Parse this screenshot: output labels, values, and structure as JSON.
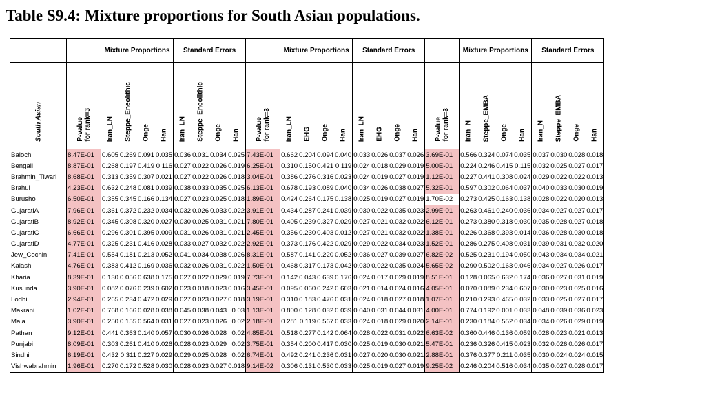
{
  "title": "Table S9.4: Mixture proportions for South Asian populations.",
  "group_labels": {
    "mixture": "Mixture Proportions",
    "stderr": "Standard Errors"
  },
  "row_header": "South Asian",
  "pvalue_header": "P-value\nfor rank=3",
  "blocks": [
    {
      "sources": [
        "Iran_LN",
        "Steppe_Eneolithic",
        "Onge",
        "Han"
      ]
    },
    {
      "sources": [
        "Iran_LN",
        "EHG",
        "Onge",
        "Han"
      ]
    },
    {
      "sources": [
        "Iran_N",
        "Steppe_EMBA",
        "Onge",
        "Han"
      ]
    }
  ],
  "colors": {
    "highlight": "#f4c2c3"
  },
  "rows": [
    {
      "name": "Balochi",
      "b": [
        [
          "8.47E-01",
          true,
          [
            "0.605",
            "0.269",
            "0.091",
            "0.035"
          ],
          [
            "0.036",
            "0.031",
            "0.034",
            "0.025"
          ]
        ],
        [
          "7.43E-01",
          true,
          [
            "0.662",
            "0.204",
            "0.094",
            "0.040"
          ],
          [
            "0.033",
            "0.026",
            "0.037",
            "0.026"
          ]
        ],
        [
          "3.69E-01",
          true,
          [
            "0.566",
            "0.324",
            "0.074",
            "0.035"
          ],
          [
            "0.037",
            "0.030",
            "0.028",
            "0.018"
          ]
        ]
      ]
    },
    {
      "name": "Bengali",
      "b": [
        [
          "8.87E-01",
          true,
          [
            "0.268",
            "0.197",
            "0.419",
            "0.116"
          ],
          [
            "0.027",
            "0.022",
            "0.026",
            "0.019"
          ]
        ],
        [
          "6.25E-01",
          true,
          [
            "0.310",
            "0.150",
            "0.421",
            "0.119"
          ],
          [
            "0.024",
            "0.018",
            "0.029",
            "0.019"
          ]
        ],
        [
          "5.00E-01",
          true,
          [
            "0.224",
            "0.246",
            "0.415",
            "0.115"
          ],
          [
            "0.032",
            "0.025",
            "0.027",
            "0.017"
          ]
        ]
      ]
    },
    {
      "name": "Brahmin_Tiwari",
      "b": [
        [
          "8.68E-01",
          true,
          [
            "0.313",
            "0.359",
            "0.307",
            "0.021"
          ],
          [
            "0.027",
            "0.022",
            "0.026",
            "0.018"
          ]
        ],
        [
          "3.04E-01",
          true,
          [
            "0.386",
            "0.276",
            "0.316",
            "0.023"
          ],
          [
            "0.024",
            "0.019",
            "0.027",
            "0.019"
          ]
        ],
        [
          "1.12E-01",
          true,
          [
            "0.227",
            "0.441",
            "0.308",
            "0.024"
          ],
          [
            "0.029",
            "0.022",
            "0.022",
            "0.013"
          ]
        ]
      ]
    },
    {
      "name": "Brahui",
      "b": [
        [
          "4.23E-01",
          true,
          [
            "0.632",
            "0.248",
            "0.081",
            "0.039"
          ],
          [
            "0.038",
            "0.033",
            "0.035",
            "0.025"
          ]
        ],
        [
          "6.13E-01",
          true,
          [
            "0.678",
            "0.193",
            "0.089",
            "0.040"
          ],
          [
            "0.034",
            "0.026",
            "0.038",
            "0.027"
          ]
        ],
        [
          "5.32E-01",
          true,
          [
            "0.597",
            "0.302",
            "0.064",
            "0.037"
          ],
          [
            "0.040",
            "0.033",
            "0.030",
            "0.019"
          ]
        ]
      ]
    },
    {
      "name": "Burusho",
      "b": [
        [
          "6.50E-01",
          true,
          [
            "0.355",
            "0.345",
            "0.166",
            "0.134"
          ],
          [
            "0.027",
            "0.023",
            "0.025",
            "0.018"
          ]
        ],
        [
          "1.89E-01",
          true,
          [
            "0.424",
            "0.264",
            "0.175",
            "0.138"
          ],
          [
            "0.025",
            "0.019",
            "0.027",
            "0.019"
          ]
        ],
        [
          "1.70E-02",
          false,
          [
            "0.273",
            "0.425",
            "0.163",
            "0.138"
          ],
          [
            "0.028",
            "0.022",
            "0.020",
            "0.013"
          ]
        ]
      ]
    },
    {
      "name": "GujaratiA",
      "b": [
        [
          "7.96E-01",
          true,
          [
            "0.361",
            "0.372",
            "0.232",
            "0.034"
          ],
          [
            "0.032",
            "0.026",
            "0.033",
            "0.022"
          ]
        ],
        [
          "3.91E-01",
          true,
          [
            "0.434",
            "0.287",
            "0.241",
            "0.039"
          ],
          [
            "0.030",
            "0.022",
            "0.035",
            "0.023"
          ]
        ],
        [
          "2.99E-01",
          true,
          [
            "0.263",
            "0.461",
            "0.240",
            "0.036"
          ],
          [
            "0.034",
            "0.027",
            "0.027",
            "0.017"
          ]
        ]
      ]
    },
    {
      "name": "GujaratiB",
      "b": [
        [
          "8.92E-01",
          true,
          [
            "0.345",
            "0.308",
            "0.320",
            "0.027"
          ],
          [
            "0.030",
            "0.025",
            "0.031",
            "0.021"
          ]
        ],
        [
          "7.80E-01",
          true,
          [
            "0.405",
            "0.239",
            "0.327",
            "0.029"
          ],
          [
            "0.027",
            "0.021",
            "0.032",
            "0.022"
          ]
        ],
        [
          "6.12E-01",
          true,
          [
            "0.273",
            "0.380",
            "0.318",
            "0.030"
          ],
          [
            "0.035",
            "0.028",
            "0.027",
            "0.018"
          ]
        ]
      ]
    },
    {
      "name": "GujaratiC",
      "b": [
        [
          "6.66E-01",
          true,
          [
            "0.296",
            "0.301",
            "0.395",
            "0.009"
          ],
          [
            "0.031",
            "0.026",
            "0.031",
            "0.021"
          ]
        ],
        [
          "2.45E-01",
          true,
          [
            "0.356",
            "0.230",
            "0.403",
            "0.012"
          ],
          [
            "0.027",
            "0.021",
            "0.032",
            "0.022"
          ]
        ],
        [
          "1.38E-01",
          true,
          [
            "0.226",
            "0.368",
            "0.393",
            "0.014"
          ],
          [
            "0.036",
            "0.028",
            "0.030",
            "0.018"
          ]
        ]
      ]
    },
    {
      "name": "GujaratiD",
      "b": [
        [
          "4.77E-01",
          true,
          [
            "0.325",
            "0.231",
            "0.416",
            "0.028"
          ],
          [
            "0.033",
            "0.027",
            "0.032",
            "0.022"
          ]
        ],
        [
          "2.92E-01",
          true,
          [
            "0.373",
            "0.176",
            "0.422",
            "0.029"
          ],
          [
            "0.029",
            "0.022",
            "0.034",
            "0.023"
          ]
        ],
        [
          "1.52E-01",
          true,
          [
            "0.286",
            "0.275",
            "0.408",
            "0.031"
          ],
          [
            "0.039",
            "0.031",
            "0.032",
            "0.020"
          ]
        ]
      ]
    },
    {
      "name": "Jew_Cochin",
      "b": [
        [
          "7.41E-01",
          true,
          [
            "0.554",
            "0.181",
            "0.213",
            "0.052"
          ],
          [
            "0.041",
            "0.034",
            "0.038",
            "0.026"
          ]
        ],
        [
          "8.31E-01",
          true,
          [
            "0.587",
            "0.141",
            "0.220",
            "0.052"
          ],
          [
            "0.036",
            "0.027",
            "0.039",
            "0.027"
          ]
        ],
        [
          "6.82E-02",
          true,
          [
            "0.525",
            "0.231",
            "0.194",
            "0.050"
          ],
          [
            "0.043",
            "0.034",
            "0.034",
            "0.021"
          ]
        ]
      ]
    },
    {
      "name": "Kalash",
      "b": [
        [
          "4.76E-01",
          true,
          [
            "0.383",
            "0.412",
            "0.169",
            "0.036"
          ],
          [
            "0.032",
            "0.026",
            "0.031",
            "0.022"
          ]
        ],
        [
          "1.50E-01",
          true,
          [
            "0.468",
            "0.317",
            "0.173",
            "0.042"
          ],
          [
            "0.030",
            "0.022",
            "0.035",
            "0.024"
          ]
        ],
        [
          "5.65E-02",
          true,
          [
            "0.290",
            "0.502",
            "0.163",
            "0.046"
          ],
          [
            "0.034",
            "0.027",
            "0.026",
            "0.017"
          ]
        ]
      ]
    },
    {
      "name": "Kharia",
      "b": [
        [
          "8.39E-01",
          true,
          [
            "0.130",
            "0.056",
            "0.638",
            "0.175"
          ],
          [
            "0.027",
            "0.022",
            "0.029",
            "0.019"
          ]
        ],
        [
          "7.73E-01",
          true,
          [
            "0.142",
            "0.043",
            "0.639",
            "0.176"
          ],
          [
            "0.024",
            "0.017",
            "0.029",
            "0.019"
          ]
        ],
        [
          "8.51E-01",
          true,
          [
            "0.128",
            "0.065",
            "0.632",
            "0.174"
          ],
          [
            "0.036",
            "0.027",
            "0.031",
            "0.019"
          ]
        ]
      ]
    },
    {
      "name": "Kusunda",
      "b": [
        [
          "3.90E-01",
          true,
          [
            "0.082",
            "0.076",
            "0.239",
            "0.602"
          ],
          [
            "0.023",
            "0.018",
            "0.023",
            "0.016"
          ]
        ],
        [
          "3.45E-01",
          true,
          [
            "0.095",
            "0.060",
            "0.242",
            "0.603"
          ],
          [
            "0.021",
            "0.014",
            "0.024",
            "0.016"
          ]
        ],
        [
          "4.05E-01",
          true,
          [
            "0.070",
            "0.089",
            "0.234",
            "0.607"
          ],
          [
            "0.030",
            "0.023",
            "0.025",
            "0.016"
          ]
        ]
      ]
    },
    {
      "name": "Lodhi",
      "b": [
        [
          "2.94E-01",
          true,
          [
            "0.265",
            "0.234",
            "0.472",
            "0.029"
          ],
          [
            "0.027",
            "0.023",
            "0.027",
            "0.018"
          ]
        ],
        [
          "3.19E-01",
          true,
          [
            "0.310",
            "0.183",
            "0.476",
            "0.031"
          ],
          [
            "0.024",
            "0.018",
            "0.027",
            "0.018"
          ]
        ],
        [
          "1.07E-01",
          true,
          [
            "0.210",
            "0.293",
            "0.465",
            "0.032"
          ],
          [
            "0.033",
            "0.025",
            "0.027",
            "0.017"
          ]
        ]
      ]
    },
    {
      "name": "Makrani",
      "b": [
        [
          "1.02E-01",
          true,
          [
            "0.768",
            "0.166",
            "0.028",
            "0.038"
          ],
          [
            "0.045",
            "0.038",
            "0.043",
            "0.03"
          ]
        ],
        [
          "1.13E-01",
          true,
          [
            "0.800",
            "0.128",
            "0.032",
            "0.039"
          ],
          [
            "0.040",
            "0.031",
            "0.044",
            "0.031"
          ]
        ],
        [
          "4.00E-01",
          true,
          [
            "0.774",
            "0.192",
            "0.001",
            "0.033"
          ],
          [
            "0.048",
            "0.039",
            "0.036",
            "0.023"
          ]
        ]
      ]
    },
    {
      "name": "Mala",
      "b": [
        [
          "3.90E-01",
          true,
          [
            "0.250",
            "0.155",
            "0.564",
            "0.031"
          ],
          [
            "0.027",
            "0.023",
            "0.026",
            "0.02"
          ]
        ],
        [
          "2.18E-01",
          true,
          [
            "0.281",
            "0.119",
            "0.567",
            "0.033"
          ],
          [
            "0.024",
            "0.018",
            "0.029",
            "0.020"
          ]
        ],
        [
          "2.14E-01",
          true,
          [
            "0.230",
            "0.184",
            "0.552",
            "0.034"
          ],
          [
            "0.034",
            "0.026",
            "0.029",
            "0.019"
          ]
        ]
      ]
    },
    {
      "name": "Pathan",
      "b": [
        [
          "9.12E-01",
          true,
          [
            "0.441",
            "0.363",
            "0.140",
            "0.057"
          ],
          [
            "0.030",
            "0.026",
            "0.028",
            "0.02"
          ]
        ],
        [
          "4.85E-01",
          true,
          [
            "0.518",
            "0.277",
            "0.142",
            "0.064"
          ],
          [
            "0.028",
            "0.022",
            "0.031",
            "0.022"
          ]
        ],
        [
          "6.63E-02",
          true,
          [
            "0.360",
            "0.446",
            "0.136",
            "0.059"
          ],
          [
            "0.028",
            "0.023",
            "0.021",
            "0.013"
          ]
        ]
      ]
    },
    {
      "name": "Punjabi",
      "b": [
        [
          "8.09E-01",
          true,
          [
            "0.303",
            "0.261",
            "0.410",
            "0.026"
          ],
          [
            "0.028",
            "0.023",
            "0.029",
            "0.02"
          ]
        ],
        [
          "3.75E-01",
          true,
          [
            "0.354",
            "0.200",
            "0.417",
            "0.030"
          ],
          [
            "0.025",
            "0.019",
            "0.030",
            "0.021"
          ]
        ],
        [
          "5.47E-01",
          true,
          [
            "0.236",
            "0.326",
            "0.415",
            "0.023"
          ],
          [
            "0.032",
            "0.026",
            "0.026",
            "0.017"
          ]
        ]
      ]
    },
    {
      "name": "Sindhi",
      "b": [
        [
          "6.19E-01",
          true,
          [
            "0.432",
            "0.311",
            "0.227",
            "0.029"
          ],
          [
            "0.029",
            "0.025",
            "0.028",
            "0.02"
          ]
        ],
        [
          "6.74E-01",
          true,
          [
            "0.492",
            "0.241",
            "0.236",
            "0.031"
          ],
          [
            "0.027",
            "0.020",
            "0.030",
            "0.021"
          ]
        ],
        [
          "2.88E-01",
          true,
          [
            "0.376",
            "0.377",
            "0.211",
            "0.035"
          ],
          [
            "0.030",
            "0.024",
            "0.024",
            "0.015"
          ]
        ]
      ]
    },
    {
      "name": "Vishwabrahmin",
      "b": [
        [
          "1.96E-01",
          true,
          [
            "0.270",
            "0.172",
            "0.528",
            "0.030"
          ],
          [
            "0.028",
            "0.023",
            "0.027",
            "0.018"
          ]
        ],
        [
          "9.14E-02",
          true,
          [
            "0.306",
            "0.131",
            "0.530",
            "0.033"
          ],
          [
            "0.025",
            "0.019",
            "0.027",
            "0.019"
          ]
        ],
        [
          "9.25E-02",
          true,
          [
            "0.246",
            "0.204",
            "0.516",
            "0.034"
          ],
          [
            "0.035",
            "0.027",
            "0.028",
            "0.017"
          ]
        ]
      ]
    }
  ]
}
